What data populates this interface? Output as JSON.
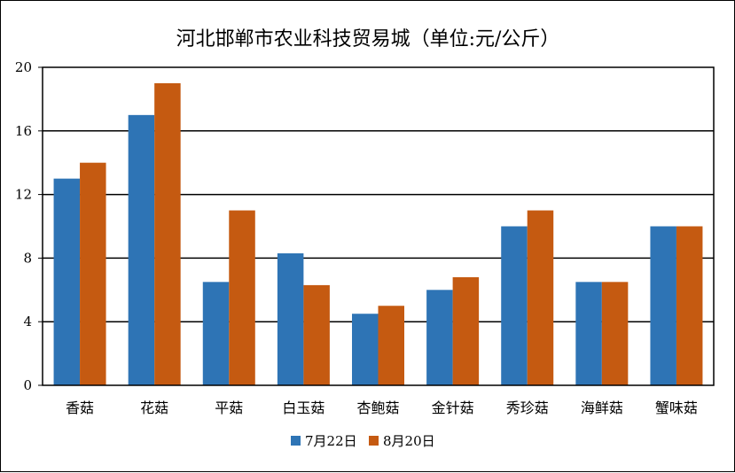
{
  "chart_data": {
    "type": "bar",
    "title": "河北邯郸市农业科技贸易城（单位:元/公斤）",
    "xlabel": "",
    "ylabel": "",
    "ylim": [
      0,
      20
    ],
    "yticks": [
      0,
      4,
      8,
      12,
      16,
      20
    ],
    "grid": true,
    "legend_position": "bottom",
    "categories": [
      "香菇",
      "花菇",
      "平菇",
      "白玉菇",
      "杏鲍菇",
      "金针菇",
      "秀珍菇",
      "海鲜菇",
      "蟹味菇"
    ],
    "series": [
      {
        "name": "7月22日",
        "color": "#2e74b5",
        "values": [
          13,
          17,
          6.5,
          8.3,
          4.5,
          6,
          10,
          6.5,
          10
        ]
      },
      {
        "name": "8月20日",
        "color": "#c55a11",
        "values": [
          14,
          19,
          11,
          6.3,
          5,
          6.8,
          11,
          6.5,
          10
        ]
      }
    ]
  }
}
